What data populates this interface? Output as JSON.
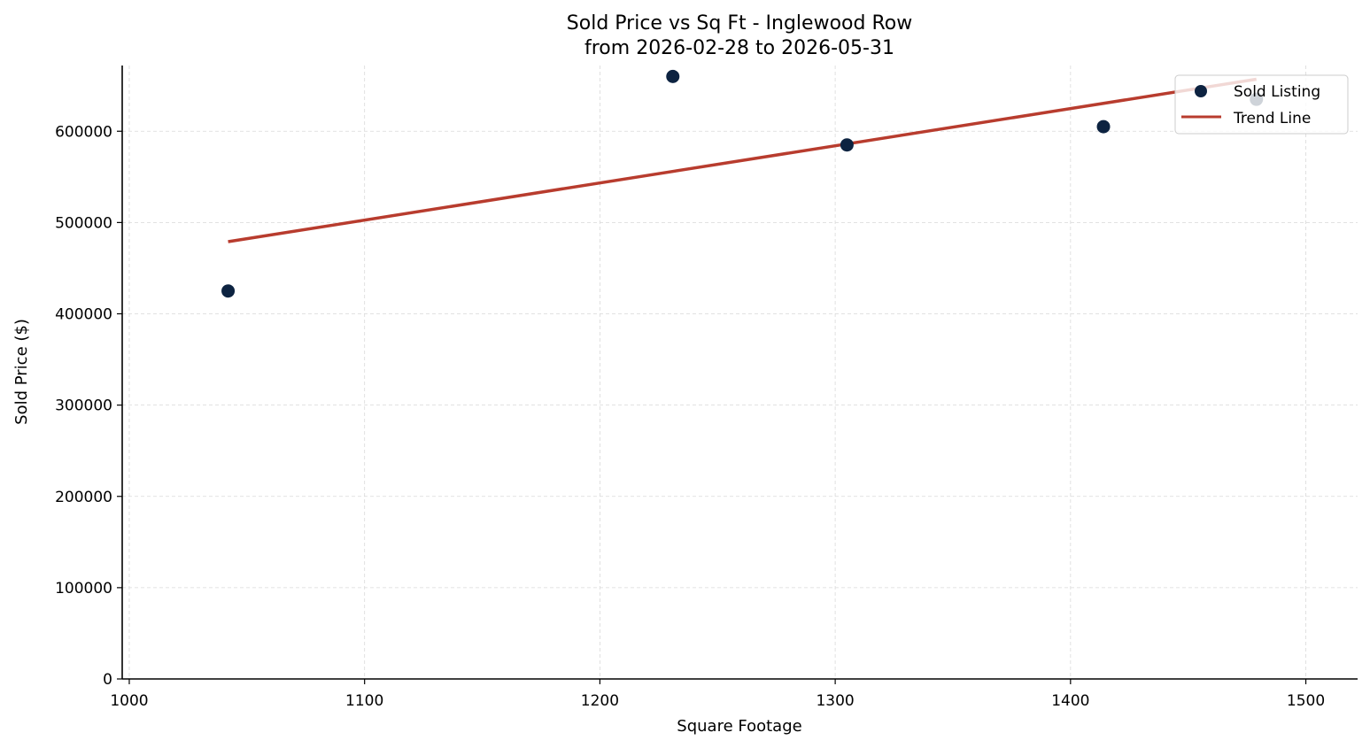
{
  "chart_data": {
    "type": "scatter",
    "title": "Sold Price vs Sq Ft - Inglewood Row",
    "subtitle": "from 2026-02-28 to 2026-05-31",
    "xlabel": "Square Footage",
    "ylabel": "Sold Price ($)",
    "xlim": [
      997,
      1522
    ],
    "ylim": [
      0,
      672000
    ],
    "xticks": [
      1000,
      1100,
      1200,
      1300,
      1400,
      1500
    ],
    "yticks": [
      0,
      100000,
      200000,
      300000,
      400000,
      500000,
      600000
    ],
    "grid": true,
    "legend_position": "top-right",
    "series": [
      {
        "name": "Sold Listing",
        "kind": "scatter",
        "color": "#0d2341",
        "points": [
          {
            "x": 1042,
            "y": 425000
          },
          {
            "x": 1231,
            "y": 660000
          },
          {
            "x": 1305,
            "y": 585000
          },
          {
            "x": 1414,
            "y": 605000
          },
          {
            "x": 1479,
            "y": 635000
          }
        ]
      },
      {
        "name": "Trend Line",
        "kind": "line",
        "color": "#b83c2e",
        "points": [
          {
            "x": 1042,
            "y": 479000
          },
          {
            "x": 1479,
            "y": 657000
          }
        ]
      }
    ]
  }
}
